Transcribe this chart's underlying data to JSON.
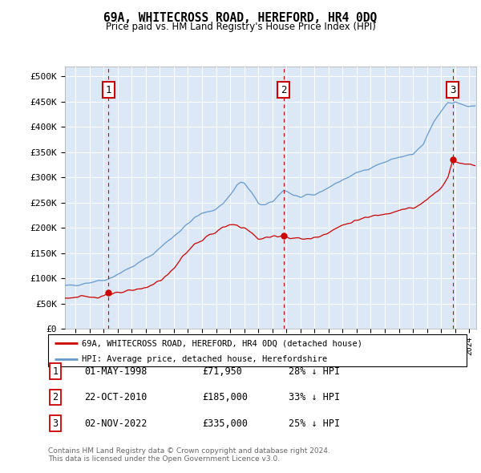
{
  "title": "69A, WHITECROSS ROAD, HEREFORD, HR4 0DQ",
  "subtitle": "Price paid vs. HM Land Registry's House Price Index (HPI)",
  "ylabel_ticks": [
    "£0",
    "£50K",
    "£100K",
    "£150K",
    "£200K",
    "£250K",
    "£300K",
    "£350K",
    "£400K",
    "£450K",
    "£500K"
  ],
  "ytick_values": [
    0,
    50000,
    100000,
    150000,
    200000,
    250000,
    300000,
    350000,
    400000,
    450000,
    500000
  ],
  "xlim_start": 1995.25,
  "xlim_end": 2024.5,
  "ylim": [
    0,
    520000
  ],
  "sale_dates": [
    1998.33,
    2010.81,
    2022.84
  ],
  "sale_prices": [
    71950,
    185000,
    335000
  ],
  "sale_labels": [
    "1",
    "2",
    "3"
  ],
  "sale_color": "#cc0000",
  "hpi_color": "#6699cc",
  "shade_color": "#dce8f5",
  "background_color": "#f0f5fb",
  "grid_color": "#cccccc",
  "legend_label_red": "69A, WHITECROSS ROAD, HEREFORD, HR4 0DQ (detached house)",
  "legend_label_blue": "HPI: Average price, detached house, Herefordshire",
  "table_entries": [
    {
      "label": "1",
      "date": "01-MAY-1998",
      "price": "£71,950",
      "pct": "28% ↓ HPI"
    },
    {
      "label": "2",
      "date": "22-OCT-2010",
      "price": "£185,000",
      "pct": "33% ↓ HPI"
    },
    {
      "label": "3",
      "date": "02-NOV-2022",
      "price": "£335,000",
      "pct": "25% ↓ HPI"
    }
  ],
  "footer": "Contains HM Land Registry data © Crown copyright and database right 2024.\nThis data is licensed under the Open Government Licence v3.0."
}
